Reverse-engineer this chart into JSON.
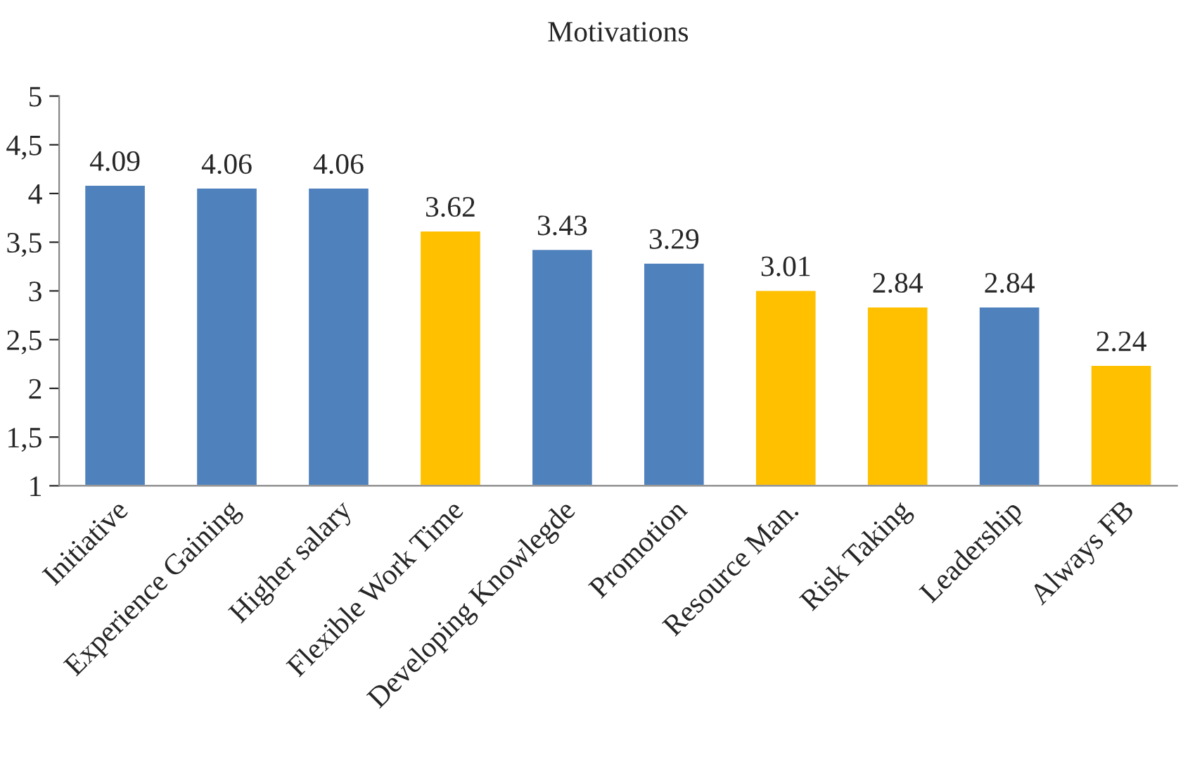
{
  "chart_data": {
    "type": "bar",
    "title": "Motivations",
    "categories": [
      "Initiative",
      "Experience Gaining",
      "Higher salary",
      "Flexible Work Time",
      "Developing Knowlegde",
      "Promotion",
      "Resource Man.",
      "Risk Taking",
      "Leadership",
      "Always FB"
    ],
    "values": [
      4.09,
      4.06,
      4.06,
      3.62,
      3.43,
      3.29,
      3.01,
      2.84,
      2.84,
      2.24
    ],
    "colors": [
      "#4f81bd",
      "#4f81bd",
      "#4f81bd",
      "#ffc000",
      "#4f81bd",
      "#4f81bd",
      "#ffc000",
      "#ffc000",
      "#4f81bd",
      "#ffc000"
    ],
    "ylim": [
      1,
      5
    ],
    "yticks": [
      1,
      {
        "value": 1.5,
        "label": "1,5"
      },
      2,
      {
        "value": 2.5,
        "label": "2,5"
      },
      3,
      {
        "value": 3.5,
        "label": "3,5"
      },
      4,
      {
        "value": 4.5,
        "label": "4,5"
      },
      5
    ],
    "data_labels": true,
    "grid": false,
    "legend": false
  }
}
